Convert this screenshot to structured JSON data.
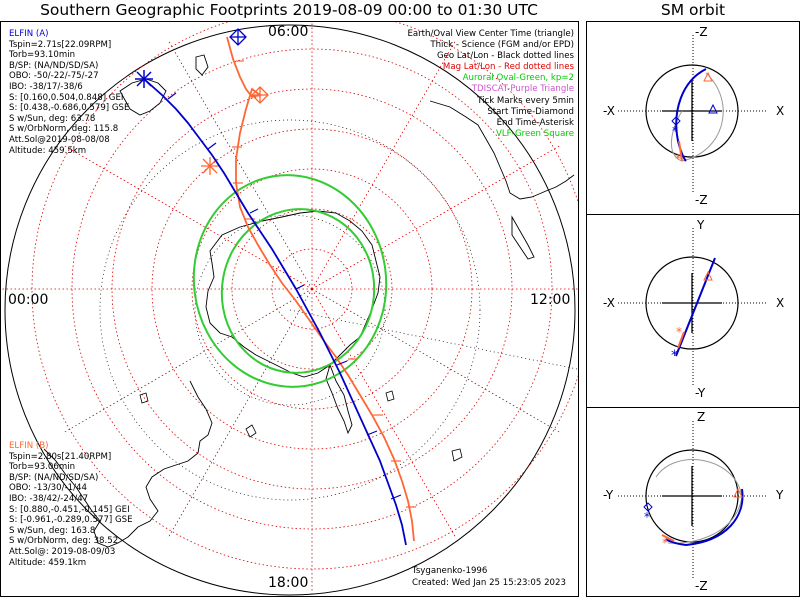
{
  "title": "Southern Geographic Footprints 2019-08-09 00:00 to 01:30 UTC",
  "orbit_title": "SM orbit",
  "hour_labels": {
    "top": "06:00",
    "left": "00:00",
    "right": "12:00",
    "bottom": "18:00"
  },
  "legend": [
    {
      "text": "Earth/Oval View Center Time (triangle)",
      "color": "#000000"
    },
    {
      "text": "Thick - Science (FGM and/or EPD)",
      "color": "#000000"
    },
    {
      "text": "Geo Lat/Lon - Black dotted lines",
      "color": "#000000"
    },
    {
      "text": "Mag Lat/Lon - Red dotted lines",
      "color": "#e00000"
    },
    {
      "text": "Auroral Oval-Green, kp=2",
      "color": "#00cc00"
    },
    {
      "text": "TDISCAT-Purple Triangle",
      "color": "#cc55cc"
    },
    {
      "text": "Tick Marks every 5min",
      "color": "#000000"
    },
    {
      "text": "Start Time-Diamond",
      "color": "#000000"
    },
    {
      "text": "End Time-Asterisk",
      "color": "#000000"
    },
    {
      "text": "VLF-Green Square",
      "color": "#00cc00"
    }
  ],
  "elfin_a": {
    "name": "ELFIN (A)",
    "color": "#0000cc",
    "lines": [
      "Tspin=2.71s[22.09RPM]",
      "Torb=93.10min",
      "B/SP: (NA/ND/SD/SA)",
      "OBO: -50/-22/-75/-27",
      "IBO: -38/17/-38/6",
      "S: [0.160,0.504,0.848] GEI",
      "S: [0.438,-0.686,0.579] GSE",
      "S w/Sun, deg: 63.78",
      "S w/OrbNorm, deg: 115.8",
      "Att.Sol@2019-08-08/08",
      "Altitude: 459.5km"
    ]
  },
  "elfin_b": {
    "name": "ELFIN (B)",
    "color": "#ff6633",
    "lines": [
      "Tspin=2.80s[21.40RPM]",
      "Torb=93.06min",
      "B/SP: (NA/ND/SD/SA)",
      "OBO: -13/30/-1/44",
      "IBO: -38/42/-24/47",
      "S: [0.880,-0.451,-0.145] GEI",
      "S: [-0.961,-0.289,0.577] GSE",
      "S w/Sun, deg: 163.8",
      "S w/OrbNorm, deg: 38.52",
      "Att.Sol@: 2019-08-09/03",
      "Altitude: 459.1km"
    ]
  },
  "credit": "Tsyganenko-1996",
  "created": "Created: Wed Jan 25 15:23:05 2023",
  "orbit_panels": [
    {
      "top": "-Z",
      "bottom": "-Z",
      "left": "-X",
      "right": "X"
    },
    {
      "top": "Y",
      "bottom": "-Y",
      "left": "-X",
      "right": "X"
    },
    {
      "top": "Z",
      "bottom": "-Z",
      "left": "-Y",
      "right": "Y"
    }
  ],
  "colors": {
    "elfin_a": "#0000cc",
    "elfin_b": "#ff6633",
    "oval": "#33cc33",
    "grid_mag": "#dd0000"
  }
}
